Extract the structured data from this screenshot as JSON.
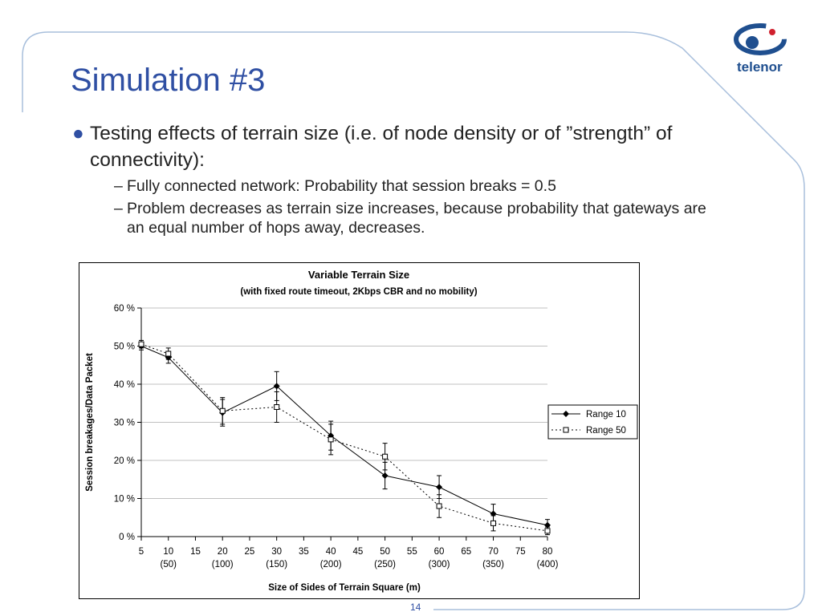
{
  "slide": {
    "title": "Simulation #3",
    "brand": "telenor",
    "page_number": "14",
    "colors": {
      "title": "#2f4fa3",
      "frame": "#a8bfdc",
      "logo": "#1f4f8f"
    },
    "bullets": [
      {
        "text": "Testing effects of terrain size (i.e. of node density or of ”strength” of connectivity):",
        "sub": [
          "Fully connected network: Probability that session breaks = 0.5",
          "Problem decreases as terrain size increases, because probability that gateways are an equal number of hops away, decreases."
        ]
      }
    ]
  },
  "chart_data": {
    "type": "line",
    "title": "Variable Terrain Size",
    "subtitle": "(with fixed route timeout, 2Kbps CBR and no mobility)",
    "xlabel": "Size of Sides of Terrain Square (m)",
    "ylabel": "Session breakages/Data Packet",
    "xlim": [
      5,
      80
    ],
    "ylim": [
      0,
      60
    ],
    "x_ticks": [
      "5",
      "10",
      "15",
      "20",
      "25",
      "30",
      "35",
      "40",
      "45",
      "50",
      "55",
      "60",
      "65",
      "70",
      "75",
      "80"
    ],
    "x_tick_values": [
      5,
      10,
      15,
      20,
      25,
      30,
      35,
      40,
      45,
      50,
      55,
      60,
      65,
      70,
      75,
      80
    ],
    "x_sub_ticks": [
      {
        "x": 10,
        "label": "(50)"
      },
      {
        "x": 20,
        "label": "(100)"
      },
      {
        "x": 30,
        "label": "(150)"
      },
      {
        "x": 40,
        "label": "(200)"
      },
      {
        "x": 50,
        "label": "(250)"
      },
      {
        "x": 60,
        "label": "(300)"
      },
      {
        "x": 70,
        "label": "(350)"
      },
      {
        "x": 80,
        "label": "(400)"
      }
    ],
    "y_ticks": [
      "0 %",
      "10 %",
      "20 %",
      "30 %",
      "40 %",
      "50 %",
      "60 %"
    ],
    "y_tick_values": [
      0,
      10,
      20,
      30,
      40,
      50,
      60
    ],
    "grid": true,
    "legend_position": "right",
    "series": [
      {
        "name": "Range 10",
        "marker": "filled-diamond",
        "style": "solid",
        "x": [
          5,
          10,
          20,
          30,
          40,
          50,
          60,
          70,
          80
        ],
        "values": [
          50,
          47,
          32.5,
          39.5,
          26.5,
          16,
          13,
          6,
          3
        ],
        "error": [
          1,
          1.5,
          3.5,
          3.8,
          3.8,
          3.5,
          3,
          2.5,
          1.5
        ]
      },
      {
        "name": "Range 50",
        "marker": "open-square",
        "style": "dotted",
        "x": [
          5,
          10,
          20,
          30,
          40,
          50,
          60,
          70,
          80
        ],
        "values": [
          50.5,
          48,
          33,
          34,
          25.5,
          21,
          8,
          3.5,
          1.5
        ],
        "error": [
          1,
          1.5,
          3.5,
          4,
          4,
          3.5,
          3,
          2,
          1
        ]
      }
    ]
  }
}
